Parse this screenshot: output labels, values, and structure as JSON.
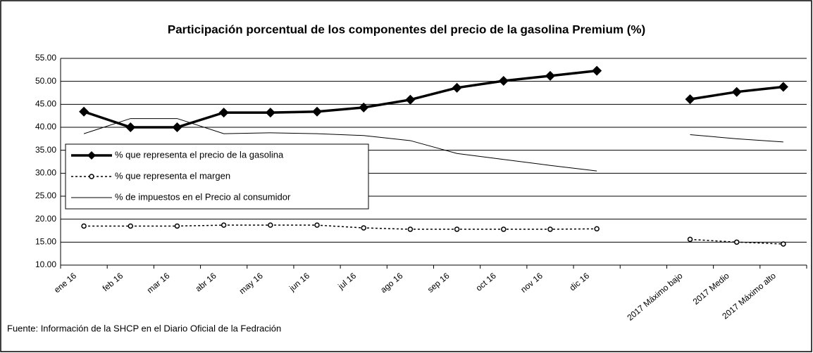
{
  "chart_data": {
    "type": "line",
    "title": "Participación porcentual de los componentes del precio de la gasolina Premium (%)",
    "categories": [
      "ene 16",
      "feb 16",
      "mar 16",
      "abr 16",
      "may 16",
      "jun 16",
      "jul 16",
      "ago 16",
      "sep 16",
      "oct 16",
      "nov 16",
      "dic 16",
      null,
      "2017 Máximo bajo",
      "2017 Medio",
      "2017 Máximo alto"
    ],
    "series": [
      {
        "name": "% que representa el precio de la gasolina",
        "color": "#000000",
        "marker": "diamond",
        "dashed": false,
        "values": [
          43.4,
          40.0,
          40.0,
          43.2,
          43.2,
          43.4,
          44.3,
          46.0,
          48.6,
          50.1,
          51.2,
          52.3,
          null,
          46.1,
          47.7,
          48.8
        ]
      },
      {
        "name": "% que representa el margen",
        "color": "#000000",
        "marker": "circle",
        "dashed": true,
        "values": [
          18.5,
          18.5,
          18.5,
          18.7,
          18.7,
          18.7,
          18.1,
          17.8,
          17.8,
          17.8,
          17.8,
          17.9,
          null,
          15.6,
          15.0,
          14.6
        ]
      },
      {
        "name": "% de impuestos en el Precio al consumidor",
        "color": "#000000",
        "marker": "none",
        "dashed": false,
        "values": [
          38.6,
          41.9,
          41.9,
          38.6,
          38.8,
          38.6,
          38.2,
          37.1,
          34.3,
          33.0,
          31.7,
          30.5,
          null,
          38.4,
          37.5,
          36.8
        ]
      }
    ],
    "ylim": [
      10,
      55
    ],
    "yticks": [
      {
        "value": 10,
        "label": "10.00"
      },
      {
        "value": 15,
        "label": "15.00"
      },
      {
        "value": 20,
        "label": "20.00"
      },
      {
        "value": 25,
        "label": "25.00"
      },
      {
        "value": 30,
        "label": "30.00"
      },
      {
        "value": 35,
        "label": "35.00"
      },
      {
        "value": 40,
        "label": "40.00"
      },
      {
        "value": 45,
        "label": "45.00"
      },
      {
        "value": 50,
        "label": "50.00"
      },
      {
        "value": 55,
        "label": "55.00"
      }
    ],
    "grid": true,
    "source": "Fuente: Información de la SHCP en el Diario Oficial de la Fedración"
  }
}
